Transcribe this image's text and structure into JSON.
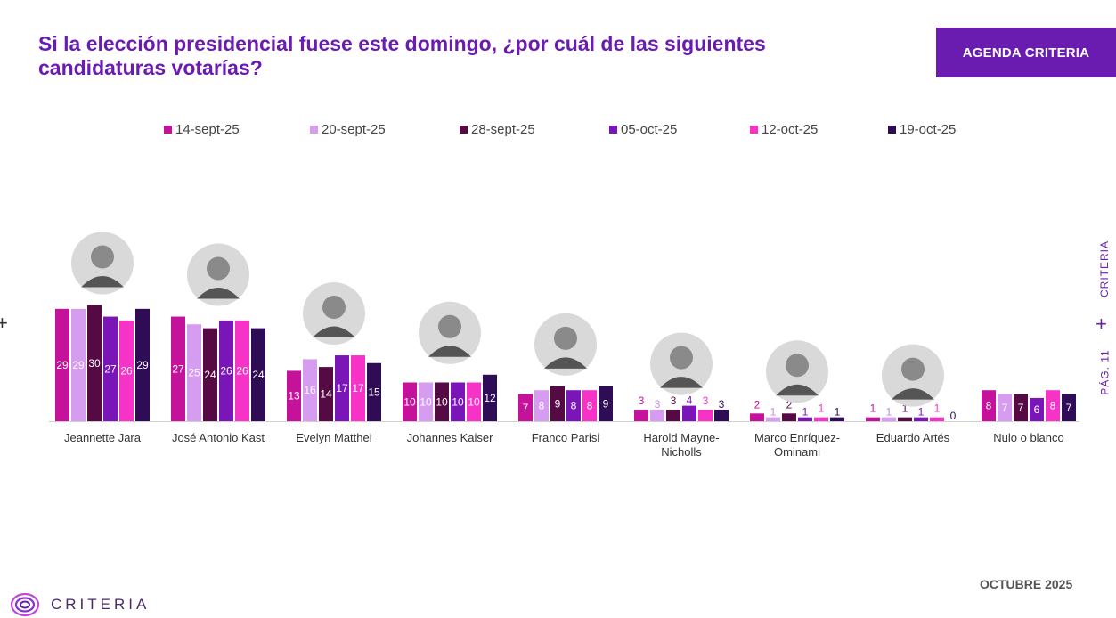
{
  "header": {
    "title": "Si la elección presidencial fuese este domingo, ¿por cuál de las siguientes candidaturas votarías?",
    "agenda_label": "AGENDA CRITERIA"
  },
  "side": {
    "brand": "CRITERIA",
    "page": "PÁG. 11"
  },
  "footer": {
    "date": "OCTUBRE 2025",
    "brand": "CRITERIA"
  },
  "colors": {
    "accent": "#6a1cb0",
    "series": [
      "#c5129a",
      "#d59cf0",
      "#560a44",
      "#7a16b8",
      "#f633c6",
      "#2e0d56"
    ]
  },
  "chart_data": {
    "type": "bar",
    "title": "Si la elección presidencial fuese este domingo, ¿por cuál de las siguientes candidaturas votarías?",
    "categories": [
      "Jeannette Jara",
      "José Antonio Kast",
      "Evelyn Matthei",
      "Johannes Kaiser",
      "Franco Parisi",
      "Harold Mayne-Nicholls",
      "Marco Enríquez-Ominami",
      "Eduardo Artés",
      "Nulo o blanco"
    ],
    "series": [
      {
        "name": "14-sept-25",
        "values": [
          29,
          27,
          13,
          10,
          7,
          3,
          2,
          1,
          8
        ]
      },
      {
        "name": "20-sept-25",
        "values": [
          29,
          25,
          16,
          10,
          8,
          3,
          1,
          1,
          7
        ]
      },
      {
        "name": "28-sept-25",
        "values": [
          30,
          24,
          14,
          10,
          9,
          3,
          2,
          1,
          7
        ]
      },
      {
        "name": "05-oct-25",
        "values": [
          27,
          26,
          17,
          10,
          8,
          4,
          1,
          1,
          6
        ]
      },
      {
        "name": "12-oct-25",
        "values": [
          26,
          26,
          17,
          10,
          8,
          3,
          1,
          1,
          8
        ]
      },
      {
        "name": "19-oct-25",
        "values": [
          29,
          24,
          15,
          12,
          9,
          3,
          1,
          0,
          7
        ]
      }
    ],
    "xlabel": "",
    "ylabel": "",
    "ylim": [
      0,
      30
    ],
    "legend": "top",
    "grid": false
  }
}
